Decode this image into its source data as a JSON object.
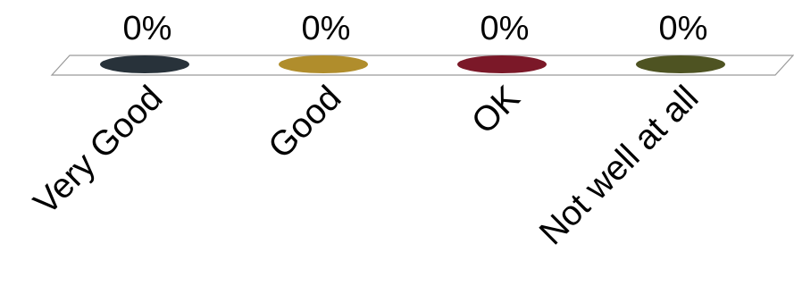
{
  "chart_data": {
    "type": "bar",
    "categories": [
      "Very Good",
      "Good",
      "OK",
      "Not well at all"
    ],
    "values": [
      0,
      0,
      0,
      0
    ],
    "data_labels": [
      "0%",
      "0%",
      "0%",
      "0%"
    ],
    "value_unit": "%",
    "colors": [
      "#28323a",
      "#b08d2c",
      "#7b1828",
      "#4e5322"
    ],
    "xlabel": "",
    "ylabel": "",
    "ylim": [
      0,
      100
    ],
    "grid": false,
    "legend": "none"
  }
}
